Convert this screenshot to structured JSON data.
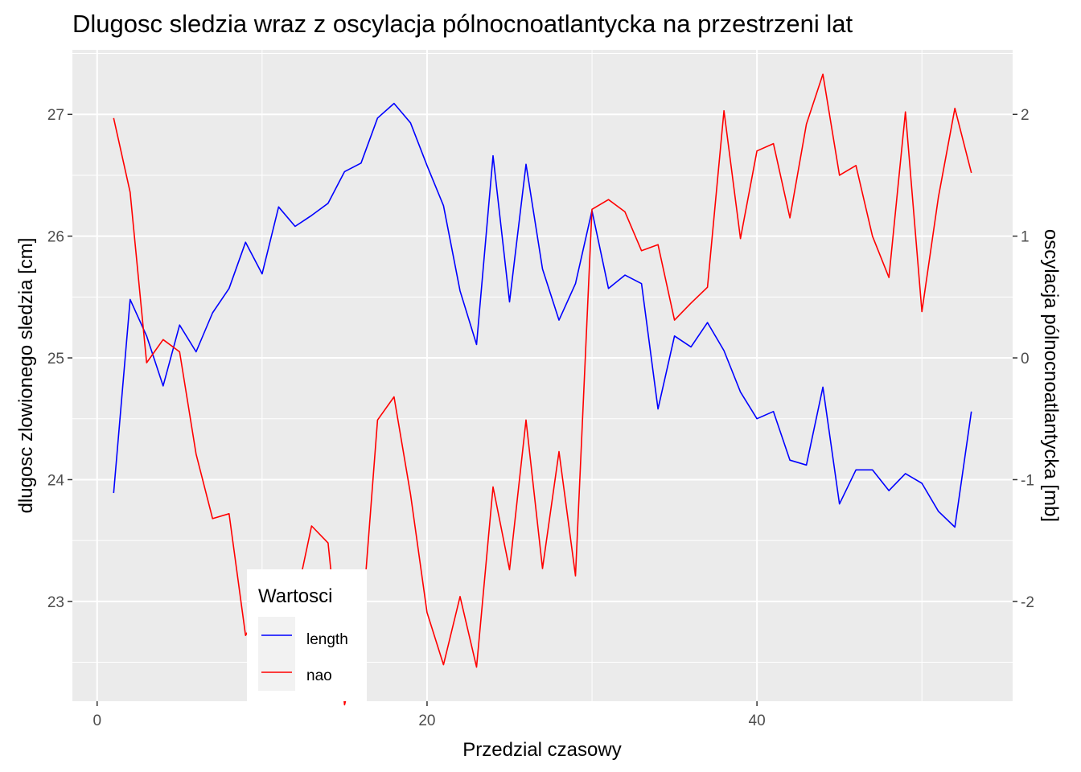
{
  "chart_data": {
    "type": "line",
    "title": "Dlugosc sledzia wraz z oscylacja pólnocnoatlantycka na przestrzeni lat",
    "xlabel": "Przedzial czasowy",
    "ylabel": "dlugosc zlowionego sledzia [cm]",
    "y2label": "oscylacja pólnocnoatlantycka [mb]",
    "xlim": [
      -1.5,
      55.5
    ],
    "ylim": [
      22.18,
      27.53
    ],
    "y2lim": [
      -2.82,
      2.53
    ],
    "x_ticks": [
      0,
      20,
      40
    ],
    "y_ticks": [
      23,
      24,
      25,
      26,
      27
    ],
    "y2_ticks": [
      -2,
      -1,
      0,
      1,
      2
    ],
    "grid": true,
    "legend": {
      "title": "Wartosci",
      "position": "bottom-left-inside",
      "entries": [
        {
          "label": "length",
          "color": "#0000ff"
        },
        {
          "label": "nao",
          "color": "#ff0000"
        }
      ]
    },
    "x": [
      1,
      2,
      3,
      4,
      5,
      6,
      7,
      8,
      9,
      10,
      11,
      12,
      13,
      14,
      15,
      16,
      17,
      18,
      19,
      20,
      21,
      22,
      23,
      24,
      25,
      26,
      27,
      28,
      29,
      30,
      31,
      32,
      33,
      34,
      35,
      36,
      37,
      38,
      39,
      40,
      41,
      42,
      43,
      44,
      45,
      46,
      47,
      48,
      49,
      50,
      51,
      52,
      53
    ],
    "series": [
      {
        "name": "length",
        "axis": "left",
        "color": "#0000ff",
        "values": [
          23.89,
          25.48,
          25.18,
          24.77,
          25.27,
          25.05,
          25.37,
          25.57,
          25.95,
          25.69,
          26.24,
          26.08,
          26.17,
          26.27,
          26.53,
          26.6,
          26.97,
          27.09,
          26.93,
          26.58,
          26.25,
          25.55,
          25.11,
          26.66,
          25.46,
          26.59,
          25.73,
          25.31,
          25.61,
          26.21,
          25.57,
          25.68,
          25.61,
          24.58,
          25.18,
          25.09,
          25.29,
          25.06,
          24.72,
          24.5,
          24.56,
          24.16,
          24.12,
          24.76,
          23.8,
          24.08,
          24.08,
          23.91,
          24.05,
          23.97,
          23.74,
          23.61,
          24.56
        ]
      },
      {
        "name": "nao",
        "axis": "right",
        "color": "#ff0000",
        "values": [
          1.97,
          1.36,
          -0.04,
          0.15,
          0.05,
          -0.79,
          -1.32,
          -1.28,
          -2.28,
          -2.05,
          -2.05,
          -2.02,
          -1.38,
          -1.52,
          -2.85,
          -2.28,
          -0.51,
          -0.32,
          -1.12,
          -2.09,
          -2.52,
          -1.96,
          -2.54,
          -1.06,
          -1.74,
          -0.51,
          -1.73,
          -0.77,
          -1.79,
          1.22,
          1.3,
          1.2,
          0.88,
          0.93,
          0.31,
          0.45,
          0.58,
          2.03,
          0.98,
          1.7,
          1.76,
          1.15,
          1.92,
          2.33,
          1.5,
          1.58,
          1.0,
          0.66,
          2.02,
          0.38,
          1.32,
          2.05,
          1.52
        ]
      }
    ]
  }
}
